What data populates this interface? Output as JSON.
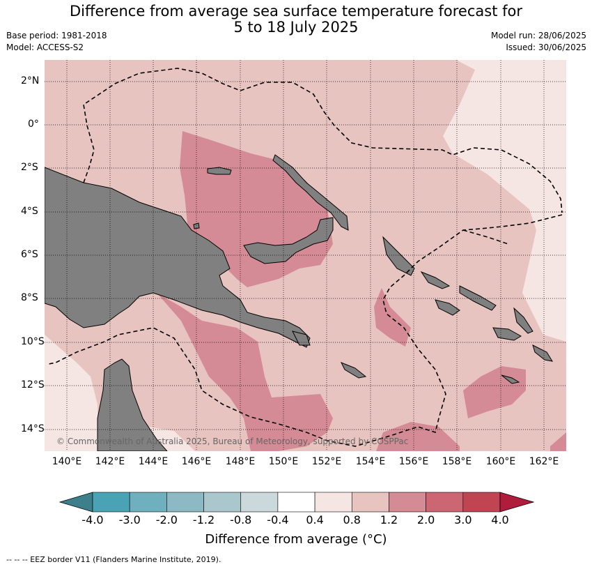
{
  "title_line1": "Difference from average sea surface temperature forecast for",
  "title_line2": "5 to 18 July 2025",
  "meta": {
    "base_period": "Base period: 1981-2018",
    "model": "Model: ACCESS-S2",
    "model_run": "Model run: 28/06/2025",
    "issued": "Issued: 30/06/2025"
  },
  "map": {
    "lat_labels": [
      "2°N",
      "0°",
      "2°S",
      "4°S",
      "6°S",
      "8°S",
      "10°S",
      "12°S",
      "14°S"
    ],
    "lon_labels": [
      "140°E",
      "142°E",
      "144°E",
      "146°E",
      "148°E",
      "150°E",
      "152°E",
      "154°E",
      "156°E",
      "158°E",
      "160°E",
      "162°E"
    ],
    "copyright": "© Commonwealth of Australia 2025, Bureau of Meteorology, supported by COSPPac",
    "land_color": "#808080"
  },
  "colorbar": {
    "title": "Difference from average (°C)",
    "tick_labels": [
      "-4.0",
      "-3.0",
      "-2.0",
      "-1.2",
      "-0.8",
      "-0.4",
      "0.4",
      "0.8",
      "1.2",
      "2.0",
      "3.0",
      "4.0"
    ],
    "colors": [
      "#3e7f8c",
      "#4aa3b4",
      "#6fb0bf",
      "#8db9c4",
      "#a9c7cc",
      "#cbd9dc",
      "#ffffff",
      "#f5e6e4",
      "#e8c4c0",
      "#d58b95",
      "#cc6673",
      "#c04452",
      "#b01c3c"
    ]
  },
  "footnote": "--  --  -- EEZ border V11 (Flanders Marine Institute, 2019)."
}
